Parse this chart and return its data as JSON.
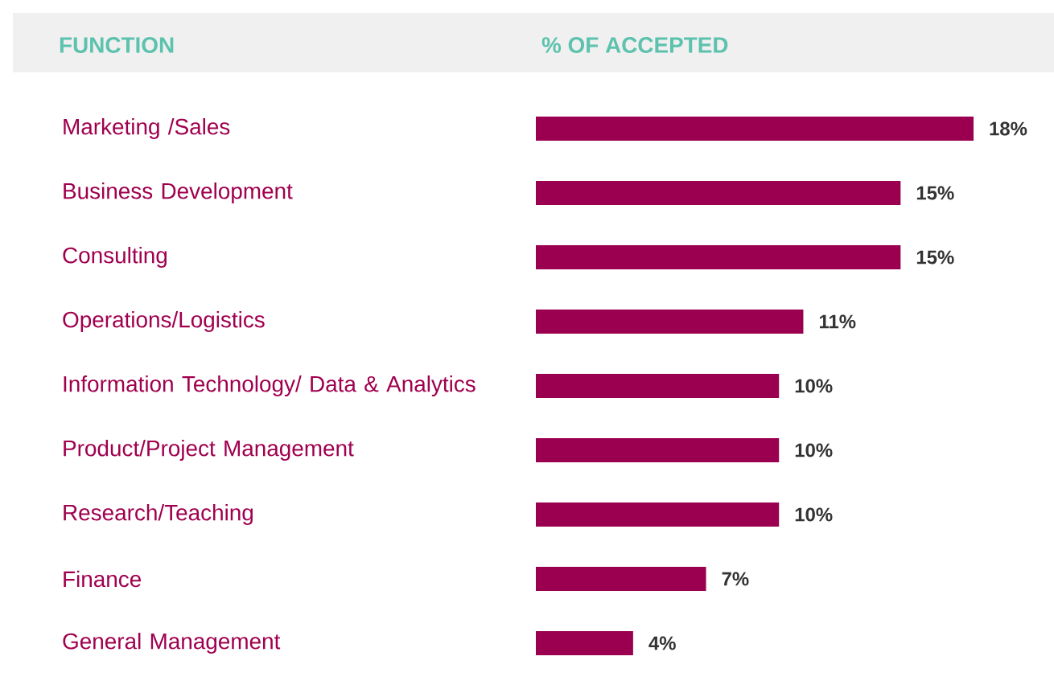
{
  "chart_data": {
    "type": "bar",
    "orientation": "horizontal",
    "ylabel": "FUNCTION",
    "xlabel": "% OF ACCEPTED",
    "categories": [
      "Marketing /Sales",
      "Business Development",
      "Consulting",
      "Operations/Logistics",
      "Information Technology/ Data & Analytics",
      "Product/Project Management",
      "Research/Teaching",
      "Finance",
      "General Management"
    ],
    "values": [
      18,
      15,
      15,
      11,
      10,
      10,
      10,
      7,
      4
    ],
    "value_labels": [
      "18%",
      "15%",
      "15%",
      "11%",
      "10%",
      "10%",
      "10%",
      "7%",
      "4%"
    ],
    "color": "#9b0050"
  }
}
